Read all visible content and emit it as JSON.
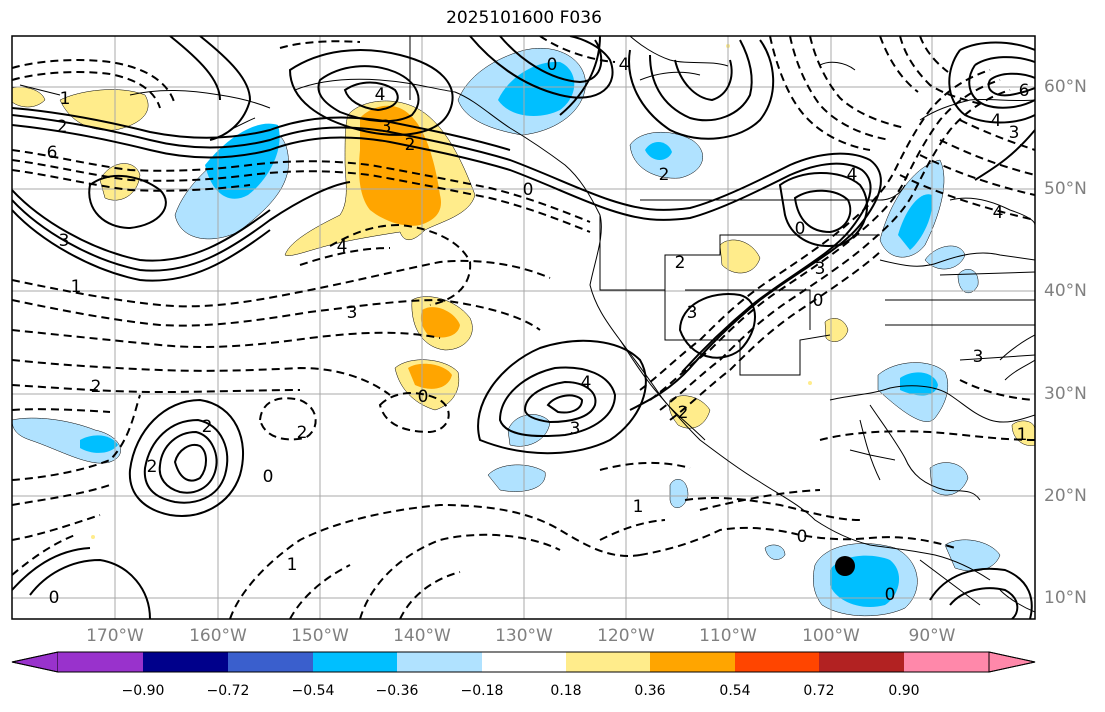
{
  "title": "2025101600 F036",
  "map": {
    "lon_labels": [
      "170°W",
      "160°W",
      "150°W",
      "140°W",
      "130°W",
      "120°W",
      "110°W",
      "100°W",
      "90°W"
    ],
    "lat_labels": [
      "60°N",
      "50°N",
      "40°N",
      "30°N",
      "20°N",
      "10°N"
    ],
    "contour_labels": [
      {
        "text": "1"
      },
      {
        "text": "2"
      },
      {
        "text": "6"
      },
      {
        "text": "3"
      },
      {
        "text": "1"
      },
      {
        "text": "4"
      },
      {
        "text": "3"
      },
      {
        "text": "2"
      },
      {
        "text": "0"
      },
      {
        "text": "4"
      },
      {
        "text": "3"
      },
      {
        "text": "2"
      },
      {
        "text": "2"
      },
      {
        "text": "0"
      },
      {
        "text": "2"
      },
      {
        "text": "0"
      },
      {
        "text": "0"
      },
      {
        "text": "1"
      },
      {
        "text": "4"
      },
      {
        "text": "3"
      },
      {
        "text": "2"
      },
      {
        "text": "0"
      },
      {
        "text": "2"
      },
      {
        "text": "3"
      },
      {
        "text": "4"
      },
      {
        "text": "0"
      },
      {
        "text": "3"
      },
      {
        "text": "2"
      },
      {
        "text": "1"
      },
      {
        "text": "4"
      },
      {
        "text": "4"
      },
      {
        "text": "6"
      },
      {
        "text": "3"
      },
      {
        "text": "3"
      },
      {
        "text": "0"
      },
      {
        "text": "1"
      },
      {
        "text": "0"
      },
      {
        "text": "0"
      },
      {
        "text": "2"
      },
      {
        "text": "4"
      }
    ]
  },
  "colorbar": {
    "colors": [
      "#9932CC",
      "#00008B",
      "#3A5FCD",
      "#00BFFF",
      "#B0E2FF",
      "#FFFFFF",
      "#FFEC8B",
      "#FFA500",
      "#FF4500",
      "#B22222",
      "#FF88AA"
    ],
    "tick_labels": [
      "−0.90",
      "−0.72",
      "−0.54",
      "−0.36",
      "−0.18",
      "0.18",
      "0.36",
      "0.54",
      "0.72",
      "0.90"
    ]
  },
  "colors": {
    "light_blue": "#B0E2FF",
    "blue": "#00BFFF",
    "light_yellow": "#FFEC8B",
    "orange": "#FFA500",
    "gridline": "#A9A9A9",
    "contour": "#000000"
  }
}
